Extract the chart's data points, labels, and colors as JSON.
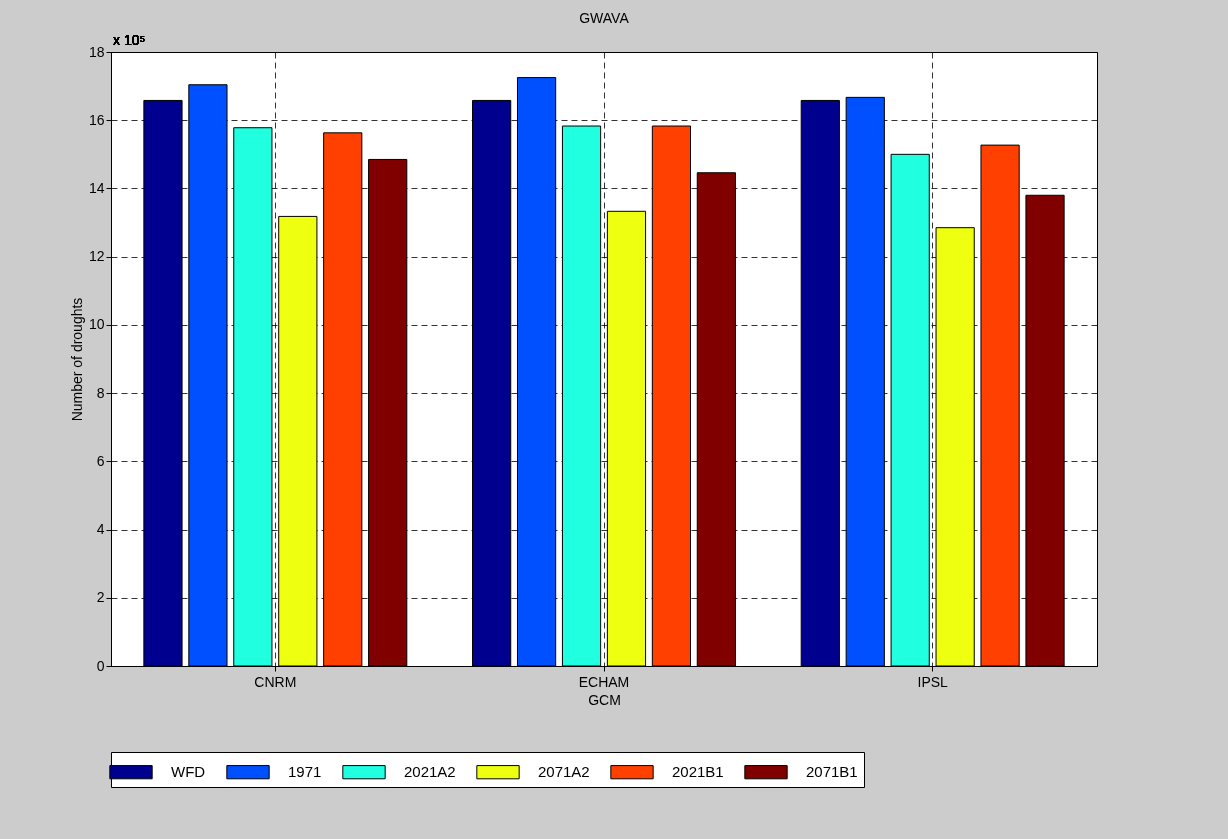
{
  "chart_data": {
    "type": "bar",
    "title": "GWAVA",
    "xlabel": "GCM",
    "ylabel": "Number of droughts",
    "annotations": [
      "x 10⁵"
    ],
    "categories": [
      "CNRM",
      "ECHAM",
      "IPSL"
    ],
    "series": [
      {
        "name": "WFD",
        "color": "#00008f",
        "values": [
          16.58,
          16.58,
          16.58
        ]
      },
      {
        "name": "1971",
        "color": "#0050ff",
        "values": [
          17.04,
          17.25,
          16.67
        ]
      },
      {
        "name": "2021A2",
        "color": "#20ffdf",
        "values": [
          15.78,
          15.83,
          15.0
        ]
      },
      {
        "name": "2071A2",
        "color": "#efff10",
        "values": [
          13.18,
          13.33,
          12.85
        ]
      },
      {
        "name": "2021B1",
        "color": "#ff4000",
        "values": [
          15.63,
          15.83,
          15.27
        ]
      },
      {
        "name": "2071B1",
        "color": "#800000",
        "values": [
          14.85,
          14.46,
          13.8
        ]
      }
    ],
    "ylim": [
      0,
      18
    ],
    "yticks": [
      0,
      2,
      4,
      6,
      8,
      10,
      12,
      14,
      16,
      18
    ],
    "grid": true,
    "legend": "bottom"
  }
}
